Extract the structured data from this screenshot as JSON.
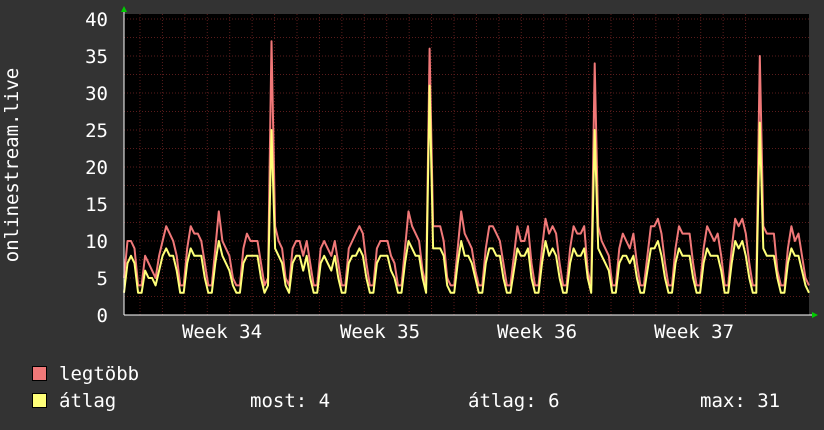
{
  "chart_data": {
    "type": "line",
    "ylabel": "onlinestream.live",
    "ylim": [
      0,
      40
    ],
    "yticks": [
      0,
      5,
      10,
      15,
      20,
      25,
      30,
      35,
      40
    ],
    "xticks": [
      "Week 34",
      "Week 35",
      "Week 36",
      "Week 37"
    ],
    "grid": true,
    "colors": {
      "background": "#333333",
      "plot": "#000000",
      "grid": "#5a1c1c",
      "max": "#f07878",
      "avg": "#ffff78"
    },
    "series": [
      {
        "name": "legtöbb",
        "color": "#f07878",
        "values": [
          5,
          10,
          10,
          9,
          4,
          4,
          8,
          7,
          6,
          5,
          8,
          10,
          12,
          11,
          10,
          8,
          4,
          4,
          9,
          12,
          11,
          11,
          10,
          7,
          4,
          4,
          9,
          14,
          10,
          9,
          8,
          5,
          4,
          4,
          9,
          11,
          10,
          10,
          10,
          7,
          4,
          5,
          37,
          12,
          10,
          9,
          5,
          4,
          9,
          10,
          10,
          8,
          10,
          7,
          4,
          4,
          9,
          10,
          9,
          8,
          10,
          7,
          4,
          4,
          9,
          10,
          11,
          12,
          11,
          7,
          4,
          4,
          9,
          10,
          10,
          10,
          8,
          7,
          4,
          4,
          9,
          14,
          12,
          11,
          10,
          6,
          4,
          36,
          12,
          12,
          12,
          10,
          5,
          4,
          4,
          9,
          14,
          11,
          10,
          9,
          6,
          4,
          4,
          9,
          12,
          12,
          11,
          10,
          7,
          4,
          4,
          8,
          12,
          10,
          10,
          12,
          7,
          4,
          4,
          9,
          13,
          11,
          12,
          11,
          7,
          4,
          4,
          9,
          12,
          11,
          11,
          12,
          6,
          4,
          34,
          12,
          10,
          9,
          8,
          4,
          4,
          9,
          11,
          10,
          9,
          11,
          7,
          4,
          4,
          8,
          12,
          12,
          13,
          11,
          7,
          4,
          4,
          9,
          12,
          11,
          11,
          11,
          7,
          4,
          4,
          9,
          12,
          11,
          10,
          11,
          8,
          4,
          4,
          9,
          13,
          12,
          13,
          11,
          7,
          4,
          4,
          35,
          12,
          11,
          11,
          11,
          6,
          4,
          4,
          9,
          12,
          10,
          11,
          8,
          5,
          4
        ]
      },
      {
        "name": "átlag",
        "color": "#ffff78",
        "values": [
          3,
          7,
          8,
          7,
          3,
          3,
          6,
          5,
          5,
          4,
          6,
          8,
          9,
          8,
          8,
          6,
          3,
          3,
          7,
          9,
          8,
          8,
          8,
          5,
          3,
          3,
          7,
          10,
          8,
          7,
          6,
          4,
          3,
          3,
          7,
          8,
          8,
          8,
          8,
          5,
          3,
          4,
          25,
          9,
          8,
          7,
          4,
          3,
          7,
          8,
          8,
          6,
          8,
          5,
          3,
          3,
          7,
          8,
          7,
          6,
          8,
          5,
          3,
          3,
          7,
          8,
          8,
          9,
          8,
          5,
          3,
          3,
          7,
          8,
          8,
          8,
          6,
          5,
          3,
          3,
          7,
          10,
          9,
          8,
          8,
          5,
          3,
          31,
          9,
          9,
          9,
          8,
          4,
          3,
          3,
          7,
          10,
          8,
          8,
          7,
          5,
          3,
          3,
          7,
          9,
          9,
          8,
          8,
          5,
          3,
          3,
          6,
          9,
          8,
          8,
          9,
          5,
          3,
          3,
          7,
          10,
          8,
          9,
          8,
          5,
          3,
          3,
          7,
          9,
          8,
          8,
          9,
          5,
          3,
          25,
          9,
          8,
          7,
          6,
          3,
          3,
          7,
          8,
          8,
          7,
          8,
          5,
          3,
          3,
          6,
          9,
          9,
          10,
          8,
          5,
          3,
          3,
          7,
          9,
          8,
          8,
          8,
          5,
          3,
          3,
          7,
          9,
          8,
          8,
          8,
          6,
          3,
          3,
          7,
          10,
          9,
          10,
          8,
          5,
          3,
          3,
          26,
          9,
          8,
          8,
          8,
          5,
          3,
          3,
          7,
          9,
          8,
          8,
          6,
          4,
          3
        ]
      }
    ]
  },
  "legend": {
    "max_label": "legtöbb",
    "avg_label": "átlag"
  },
  "stats": {
    "now": "most: 4",
    "avg": "átlag: 6",
    "max": "max: 31"
  }
}
